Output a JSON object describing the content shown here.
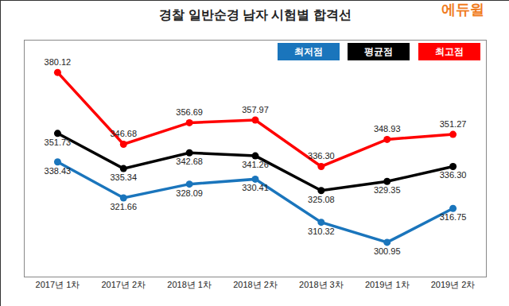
{
  "chart_data": {
    "type": "line",
    "title": "경찰 일반순경 남자 시험별 합격선",
    "annotations": [
      {
        "text": "에듀윌"
      }
    ],
    "categories": [
      "2017년 1차",
      "2017년 2차",
      "2018년 1차",
      "2018년 2차",
      "2018년 3차",
      "2019년 1차",
      "2019년 2차"
    ],
    "series": [
      {
        "name": "최저점",
        "color": "#1a75bc",
        "values": [
          338.43,
          321.66,
          328.09,
          330.41,
          310.32,
          300.95,
          316.75
        ],
        "value_labels": [
          "338.43",
          "321.66",
          "328.09",
          "330.41",
          "310.32",
          "300.95",
          "316.75"
        ]
      },
      {
        "name": "평균점",
        "color": "#000000",
        "values": [
          351.73,
          335.34,
          342.68,
          341.26,
          325.08,
          329.35,
          336.3
        ],
        "value_labels": [
          "351.73",
          "335.34",
          "342.68",
          "341.26",
          "325.08",
          "329.35",
          "336.30"
        ]
      },
      {
        "name": "최고점",
        "color": "#ff0000",
        "values": [
          380.12,
          346.68,
          356.69,
          357.97,
          336.3,
          348.93,
          351.27
        ],
        "value_labels": [
          "380.12",
          "346.68",
          "356.69",
          "357.97",
          "336.30",
          "348.93",
          "351.27"
        ]
      }
    ],
    "ylim": [
      285,
      395
    ],
    "grid": false,
    "legend": "top right",
    "data_labels": true,
    "tick_labels": "x",
    "marker": "circle"
  }
}
